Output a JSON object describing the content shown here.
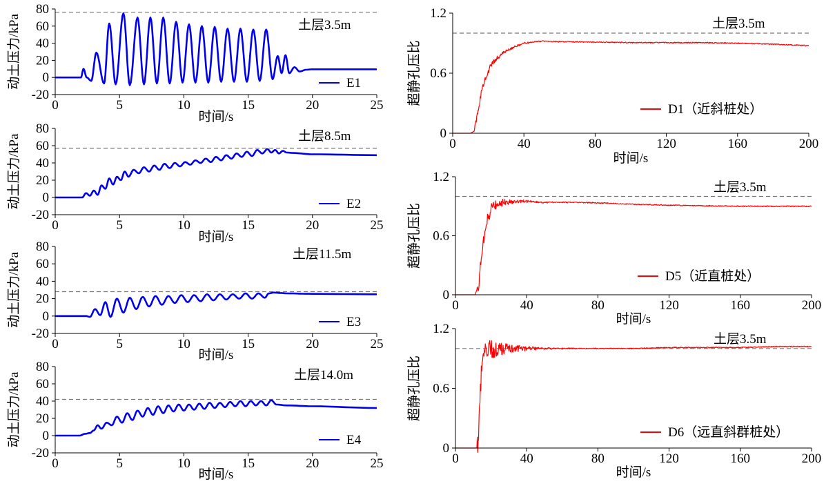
{
  "chart_data": [
    {
      "id": "E1",
      "type": "line",
      "xlabel": "时间/s",
      "ylabel": "动土压力/kPa",
      "xlim": [
        0,
        25
      ],
      "ylim": [
        -20,
        80
      ],
      "xticks": [
        0,
        5,
        10,
        15,
        20,
        25
      ],
      "yticks": [
        -20,
        0,
        20,
        40,
        60,
        80
      ],
      "reference_line": 76,
      "annotation": "土层3.5m",
      "legend": "E1",
      "color": "#0000ee",
      "series": [
        {
          "name": "E1",
          "x": [
            0,
            2,
            2.2,
            2.45,
            2.8,
            3.2,
            3.8,
            4.2,
            4.7,
            5.3,
            5.8,
            6.4,
            6.9,
            7.4,
            7.9,
            8.4,
            8.9,
            9.4,
            9.9,
            10.4,
            10.9,
            11.4,
            11.9,
            12.4,
            12.9,
            13.4,
            13.9,
            14.4,
            14.9,
            15.4,
            15.9,
            16.4,
            16.9,
            17.3,
            17.6,
            17.9,
            18.2,
            18.6,
            19,
            19.5,
            20,
            25
          ],
          "y": [
            0,
            0,
            10,
            0,
            -4,
            29,
            -7,
            63,
            -8,
            75,
            -9,
            70,
            -8,
            70,
            -7,
            70,
            -7,
            65,
            -6,
            62,
            -6,
            60,
            -6,
            59,
            -5,
            57,
            -5,
            57,
            -5,
            56,
            -4,
            56,
            -2,
            25,
            5,
            26,
            5,
            12,
            7,
            9,
            9.5,
            9.5
          ]
        }
      ]
    },
    {
      "id": "E2",
      "type": "line",
      "xlabel": "时间/s",
      "ylabel": "动土压力/kPa",
      "xlim": [
        0,
        25
      ],
      "ylim": [
        -20,
        80
      ],
      "xticks": [
        0,
        5,
        10,
        15,
        20,
        25
      ],
      "yticks": [
        -20,
        0,
        20,
        40,
        60,
        80
      ],
      "reference_line": 57,
      "annotation": "土层8.5m",
      "legend": "E2",
      "color": "#0000ee",
      "series": [
        {
          "name": "E2",
          "x": [
            0,
            2.1,
            2.4,
            2.7,
            3,
            3.3,
            3.6,
            3.9,
            4.2,
            4.5,
            4.8,
            5.1,
            5.4,
            5.7,
            6.1,
            6.5,
            6.9,
            7.3,
            7.7,
            8.1,
            8.5,
            8.9,
            9.3,
            9.7,
            10.1,
            10.5,
            10.9,
            11.3,
            11.7,
            12.1,
            12.5,
            12.9,
            13.3,
            13.7,
            14.1,
            14.5,
            14.9,
            15.3,
            15.7,
            16.1,
            16.5,
            16.8,
            17.1,
            17.4,
            17.7,
            18,
            18.5,
            20,
            25
          ],
          "y": [
            0,
            0,
            5,
            2,
            8,
            3,
            14,
            10,
            22,
            15,
            24,
            20,
            30,
            24,
            32,
            28,
            35,
            30,
            37,
            32,
            39,
            34,
            40,
            36,
            41,
            38,
            43,
            40,
            45,
            41,
            47,
            43,
            49,
            45,
            51,
            47,
            53,
            48,
            55,
            51,
            56,
            52,
            55,
            51,
            54,
            52,
            51.5,
            50,
            49
          ]
        }
      ]
    },
    {
      "id": "E3",
      "type": "line",
      "xlabel": "时间/s",
      "ylabel": "动土压力/kPa",
      "xlim": [
        0,
        25
      ],
      "ylim": [
        -20,
        80
      ],
      "xticks": [
        0,
        5,
        10,
        15,
        20,
        25
      ],
      "yticks": [
        -20,
        0,
        20,
        40,
        60,
        80
      ],
      "reference_line": 28,
      "annotation": "土层11.5m",
      "legend": "E3",
      "color": "#0000ee",
      "series": [
        {
          "name": "E3",
          "x": [
            0,
            2.4,
            2.7,
            3.1,
            3.5,
            3.9,
            4.3,
            4.8,
            5.3,
            5.8,
            6.3,
            6.8,
            7.3,
            7.8,
            8.3,
            8.8,
            9.3,
            9.8,
            10.3,
            10.8,
            11.3,
            11.8,
            12.3,
            12.8,
            13.3,
            13.8,
            14.3,
            14.8,
            15.3,
            15.8,
            16.3,
            16.6,
            17,
            17.5,
            18,
            20,
            25
          ],
          "y": [
            0,
            0,
            -1,
            8,
            1,
            16,
            -1,
            20,
            4,
            21,
            8,
            22,
            11,
            23,
            13,
            23,
            15,
            24,
            16,
            24,
            17,
            25,
            18,
            25,
            19,
            25,
            20,
            26,
            20,
            26,
            21,
            26,
            27,
            26.5,
            26,
            25.5,
            25
          ]
        }
      ]
    },
    {
      "id": "E4",
      "type": "line",
      "xlabel": "时间/s",
      "ylabel": "动土压力/kPa",
      "xlim": [
        0,
        25
      ],
      "ylim": [
        -20,
        80
      ],
      "xticks": [
        0,
        5,
        10,
        15,
        20,
        25
      ],
      "yticks": [
        -20,
        0,
        20,
        40,
        60,
        80
      ],
      "reference_line": 42,
      "annotation": "土层14.0m",
      "legend": "E4",
      "color": "#0000ee",
      "series": [
        {
          "name": "E4",
          "x": [
            0,
            1.9,
            2.3,
            2.7,
            3,
            3.3,
            3.6,
            4,
            4.4,
            4.8,
            5.2,
            5.6,
            6,
            6.4,
            6.8,
            7.2,
            7.6,
            8,
            8.4,
            8.8,
            9.2,
            9.6,
            10,
            10.4,
            10.8,
            11.2,
            11.6,
            12,
            12.4,
            12.8,
            13.2,
            13.6,
            14,
            14.4,
            14.8,
            15.2,
            15.6,
            16,
            16.4,
            16.8,
            17.2,
            18,
            20,
            25
          ],
          "y": [
            0,
            0,
            2,
            3,
            6,
            12,
            8,
            15,
            12,
            22,
            15,
            26,
            18,
            29,
            22,
            32,
            24,
            34,
            26,
            35,
            28,
            36,
            29,
            36,
            30,
            37,
            31,
            38,
            32,
            38,
            33,
            39,
            34,
            40,
            34,
            40,
            35,
            40,
            35,
            41,
            36,
            35,
            34,
            32
          ]
        }
      ]
    },
    {
      "id": "D1",
      "type": "line",
      "xlabel": "时间/s",
      "ylabel": "超静孔压比",
      "xlim": [
        0,
        200
      ],
      "ylim": [
        0,
        1.2
      ],
      "xticks": [
        0,
        40,
        80,
        120,
        160,
        200
      ],
      "yticks": [
        0,
        0.6,
        1.2
      ],
      "reference_line": 1.0,
      "annotation": "土层3.5m",
      "legend": "D1（近斜桩处）",
      "color": "#ff0000",
      "series": [
        {
          "name": "D1",
          "x": [
            0,
            10,
            12,
            14,
            16,
            18,
            20,
            22,
            25,
            28,
            32,
            36,
            40,
            45,
            50,
            60,
            80,
            100,
            120,
            140,
            160,
            180,
            200
          ],
          "y": [
            0,
            0,
            0.02,
            0.2,
            0.4,
            0.53,
            0.62,
            0.69,
            0.75,
            0.8,
            0.84,
            0.87,
            0.9,
            0.91,
            0.92,
            0.915,
            0.91,
            0.905,
            0.905,
            0.905,
            0.9,
            0.89,
            0.875
          ]
        }
      ]
    },
    {
      "id": "D5",
      "type": "line",
      "xlabel": "时间/s",
      "ylabel": "超静孔压比",
      "xlim": [
        0,
        200
      ],
      "ylim": [
        0,
        1.2
      ],
      "xticks": [
        0,
        40,
        80,
        120,
        160,
        200
      ],
      "yticks": [
        0,
        0.6,
        1.2
      ],
      "reference_line": 1.0,
      "annotation": "土层3.5m",
      "legend": "D5（近直桩处）",
      "color": "#ff0000",
      "series": [
        {
          "name": "D5",
          "x": [
            0,
            11,
            13,
            15,
            17,
            19,
            21,
            24,
            28,
            32,
            36,
            40,
            45,
            50,
            60,
            80,
            100,
            120,
            140,
            160,
            180,
            200
          ],
          "y": [
            0,
            0,
            0.1,
            0.45,
            0.7,
            0.82,
            0.9,
            0.93,
            0.94,
            0.945,
            0.95,
            0.95,
            0.945,
            0.94,
            0.94,
            0.935,
            0.92,
            0.91,
            0.905,
            0.9,
            0.9,
            0.9
          ]
        }
      ]
    },
    {
      "id": "D6",
      "type": "line",
      "xlabel": "时间/s",
      "ylabel": "超静孔压比",
      "xlim": [
        0,
        200
      ],
      "ylim": [
        0,
        1.2
      ],
      "xticks": [
        0,
        40,
        80,
        120,
        160,
        200
      ],
      "yticks": [
        0,
        0.6,
        1.2
      ],
      "reference_line": 1.0,
      "annotation": "土层3.5m",
      "legend": "D6（远直斜群桩处）",
      "color": "#ff0000",
      "series": [
        {
          "name": "D6",
          "x": [
            0,
            12,
            13,
            14,
            15,
            16,
            18,
            20,
            24,
            28,
            32,
            36,
            40,
            45,
            50,
            60,
            80,
            100,
            120,
            140,
            160,
            180,
            200
          ],
          "y": [
            0,
            0,
            0.1,
            0.6,
            0.85,
            0.95,
            0.98,
            0.99,
            1.0,
            1.0,
            1.0,
            1.0,
            1.0,
            1.0,
            1.0,
            1.0,
            1.0,
            1.0,
            1.01,
            1.01,
            1.01,
            1.02,
            1.02
          ]
        }
      ]
    }
  ]
}
